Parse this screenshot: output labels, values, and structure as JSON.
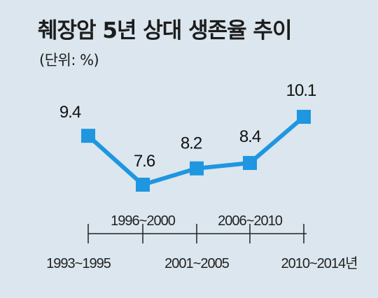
{
  "title": "췌장암 5년 상대 생존율 추이",
  "subtitle": "(단위: %)",
  "colors": {
    "background": "#dbe6ee",
    "series": "#1f96e0",
    "axis": "#222222"
  },
  "chart_data": {
    "type": "line",
    "title": "췌장암 5년 상대 생존율 추이",
    "subtitle": "(단위: %)",
    "categories": [
      "1993~1995",
      "1996~2000",
      "2001~2005",
      "2006~2010",
      "2010~2014년"
    ],
    "x_label_rows": [
      "bottom",
      "top",
      "bottom",
      "top",
      "bottom"
    ],
    "series": [
      {
        "values": [
          9.4,
          7.6,
          8.2,
          8.4,
          10.1
        ],
        "labels": [
          "9.4",
          "7.6",
          "8.2",
          "8.4",
          "10.1"
        ],
        "marker": "square"
      }
    ],
    "xlabel": "",
    "ylabel": "",
    "grid": false,
    "legend": "none"
  }
}
